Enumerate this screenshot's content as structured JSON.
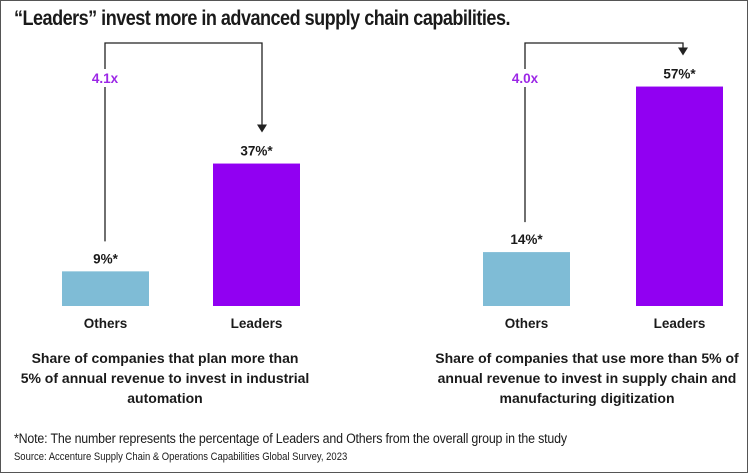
{
  "title": "“Leaders” invest more in advanced supply chain capabilities.",
  "colors": {
    "others": "#7fbcd6",
    "leaders": "#9100f2",
    "multiplier": "#9c27e6",
    "text": "#1a1a1a"
  },
  "chart_data": [
    {
      "type": "bar",
      "categories": [
        "Others",
        "Leaders"
      ],
      "values": [
        9,
        37
      ],
      "value_labels": [
        "9%*",
        "37%*"
      ],
      "multiplier": "4.1x",
      "caption": [
        "Share of companies that plan more than",
        "5% of annual revenue to invest in industrial",
        "automation"
      ]
    },
    {
      "type": "bar",
      "categories": [
        "Others",
        "Leaders"
      ],
      "values": [
        14,
        57
      ],
      "value_labels": [
        "14%*",
        "57%*"
      ],
      "multiplier": "4.0x",
      "caption": [
        "Share of companies that use more than 5% of",
        "annual revenue to invest in supply chain and",
        "manufacturing digitization"
      ]
    }
  ],
  "note": "*Note: The number represents the percentage of Leaders and Others from the overall group in the study",
  "source": "Source: Accenture Supply Chain & Operations Capabilities Global Survey, 2023"
}
